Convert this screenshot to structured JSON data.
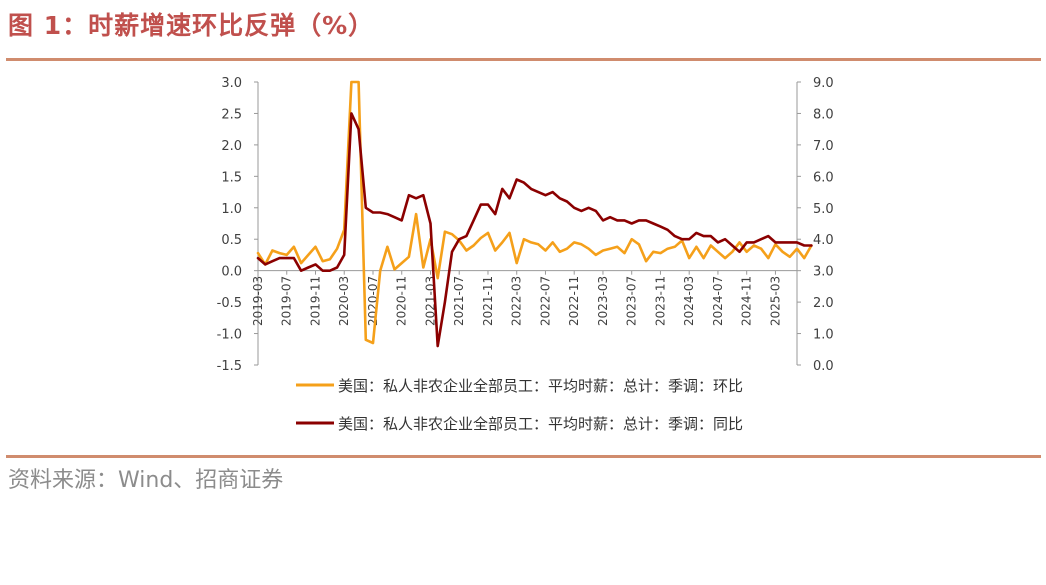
{
  "header": {
    "title": "图 1：时薪增速环比反弹（%）"
  },
  "footer": {
    "source": "资料来源：Wind、招商证券"
  },
  "chart_data": {
    "type": "line",
    "y_left": {
      "lim": [
        -1.5,
        3.0
      ],
      "ticks": [
        "3.0",
        "2.5",
        "2.0",
        "1.5",
        "1.0",
        "0.5",
        "0.0",
        "-0.5",
        "-1.0",
        "-1.5"
      ]
    },
    "y_right": {
      "lim": [
        0.0,
        9.0
      ],
      "ticks": [
        "9.0",
        "8.0",
        "7.0",
        "6.0",
        "5.0",
        "4.0",
        "3.0",
        "2.0",
        "1.0",
        "0.0"
      ]
    },
    "x_range": [
      "2019-03",
      "2025-06"
    ],
    "x_ticks": [
      "2019-03",
      "2019-07",
      "2019-11",
      "2020-03",
      "2020-07",
      "2020-11",
      "2021-03",
      "2021-07",
      "2021-11",
      "2022-03",
      "2022-07",
      "2022-11",
      "2023-03",
      "2023-07",
      "2023-11",
      "2024-03",
      "2024-07",
      "2024-11",
      "2025-03"
    ],
    "grid": false,
    "legend_position": "bottom",
    "series": [
      {
        "name": "美国：私人非农企业全部员工：平均时薪：总计：季调：环比",
        "axis": "left",
        "color": "#f5a01a",
        "values": [
          0.28,
          0.1,
          0.32,
          0.28,
          0.25,
          0.38,
          0.12,
          0.25,
          0.38,
          0.15,
          0.18,
          0.35,
          0.65,
          3.0,
          3.0,
          -1.1,
          -1.15,
          0.0,
          0.38,
          0.02,
          0.12,
          0.22,
          0.9,
          0.05,
          0.5,
          -0.12,
          0.62,
          0.58,
          0.48,
          0.32,
          0.4,
          0.52,
          0.6,
          0.32,
          0.45,
          0.6,
          0.12,
          0.5,
          0.45,
          0.42,
          0.32,
          0.45,
          0.3,
          0.35,
          0.45,
          0.42,
          0.35,
          0.25,
          0.32,
          0.35,
          0.38,
          0.28,
          0.5,
          0.42,
          0.15,
          0.3,
          0.28,
          0.35,
          0.38,
          0.48,
          0.2,
          0.38,
          0.2,
          0.4,
          0.3,
          0.2,
          0.3,
          0.45,
          0.3,
          0.4,
          0.35,
          0.2,
          0.42,
          0.3,
          0.22,
          0.35,
          0.2,
          0.4
        ]
      },
      {
        "name": "美国：私人非农企业全部员工：平均时薪：总计：季调：同比",
        "axis": "right",
        "color": "#8b0000",
        "values": [
          3.4,
          3.2,
          3.3,
          3.4,
          3.4,
          3.4,
          3.0,
          3.1,
          3.2,
          3.0,
          3.0,
          3.1,
          3.5,
          8.0,
          7.5,
          5.0,
          4.85,
          4.85,
          4.8,
          4.7,
          4.6,
          5.4,
          5.3,
          5.4,
          4.5,
          0.6,
          2.0,
          3.6,
          4.0,
          4.1,
          4.6,
          5.1,
          5.1,
          4.8,
          5.6,
          5.3,
          5.9,
          5.8,
          5.6,
          5.5,
          5.4,
          5.5,
          5.3,
          5.2,
          5.0,
          4.9,
          5.0,
          4.9,
          4.6,
          4.7,
          4.6,
          4.6,
          4.5,
          4.6,
          4.6,
          4.5,
          4.4,
          4.3,
          4.1,
          4.0,
          4.0,
          4.2,
          4.1,
          4.1,
          3.9,
          4.0,
          3.8,
          3.6,
          3.9,
          3.9,
          4.0,
          4.1,
          3.9,
          3.9,
          3.9,
          3.9,
          3.8,
          3.8
        ]
      }
    ]
  }
}
